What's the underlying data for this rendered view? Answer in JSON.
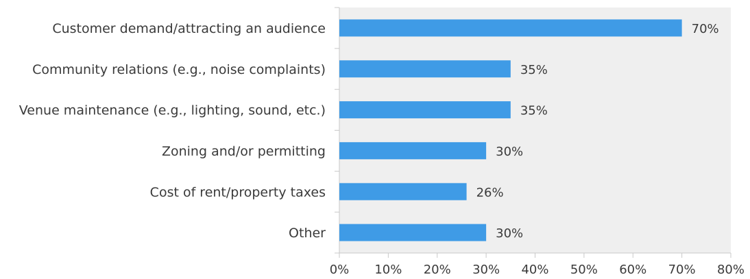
{
  "chart_data": {
    "type": "bar",
    "orientation": "horizontal",
    "categories": [
      "Customer demand/attracting an audience",
      "Community relations (e.g., noise complaints)",
      "Venue maintenance (e.g., lighting, sound, etc.)",
      "Zoning and/or permitting",
      "Cost of rent/property taxes",
      "Other"
    ],
    "values": [
      70,
      35,
      35,
      30,
      26,
      30
    ],
    "data_labels": [
      "70%",
      "35%",
      "35%",
      "30%",
      "26%",
      "30%"
    ],
    "xlim": [
      0,
      80
    ],
    "x_ticks": [
      0,
      10,
      20,
      30,
      40,
      50,
      60,
      70,
      80
    ],
    "x_tick_labels": [
      "0%",
      "10%",
      "20%",
      "30%",
      "40%",
      "50%",
      "60%",
      "70%",
      "80%"
    ],
    "title": "",
    "xlabel": "",
    "ylabel": "",
    "grid": false,
    "legend": "none",
    "colors": {
      "bar": "#3f9be6",
      "plot_background": "#efefef",
      "axis": "#c8c8c8",
      "text": "#3a3a3a"
    }
  }
}
